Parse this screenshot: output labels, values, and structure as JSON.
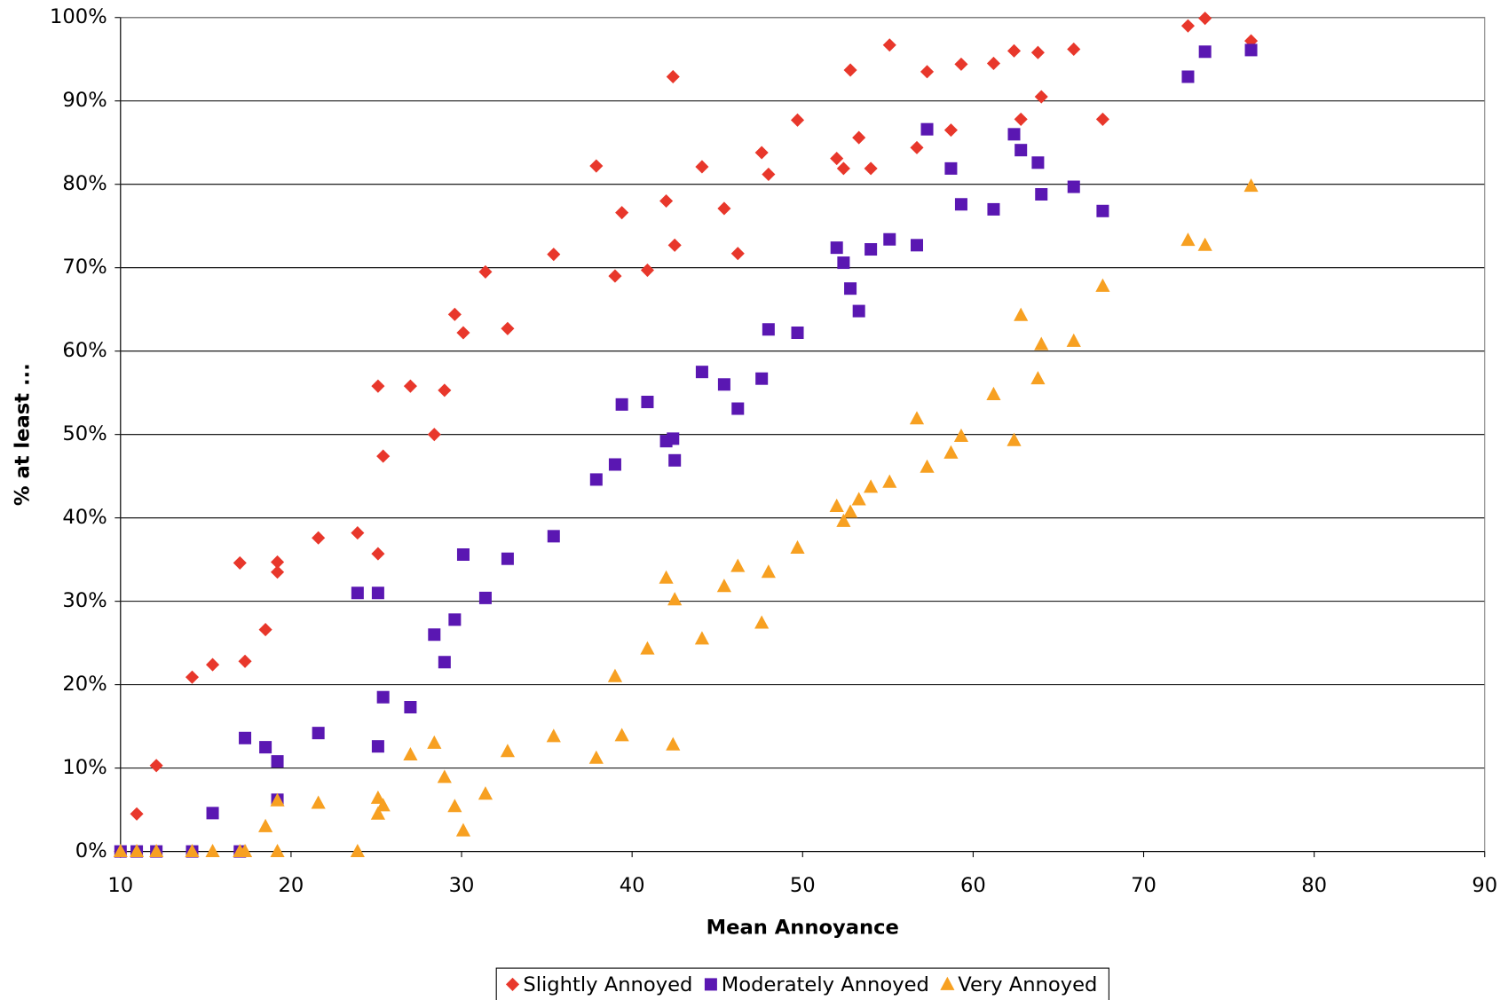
{
  "chart_data": {
    "type": "scatter",
    "xlabel": "Mean Annoyance",
    "ylabel": "% at least ...",
    "x": [
      10,
      10.95,
      12.1,
      14.2,
      15.4,
      17.0,
      17.3,
      18.5,
      19.2,
      19.2,
      21.6,
      23.9,
      25.1,
      25.1,
      25.4,
      27.0,
      28.4,
      29.0,
      29.6,
      30.1,
      31.4,
      32.7,
      35.4,
      37.9,
      39.0,
      39.4,
      40.9,
      42.0,
      42.4,
      42.5,
      44.1,
      45.4,
      46.2,
      47.6,
      48.0,
      49.7,
      52.0,
      52.4,
      52.8,
      53.3,
      54.0,
      55.1,
      56.7,
      57.3,
      58.7,
      59.3,
      61.2,
      62.4,
      62.8,
      63.8,
      64.0,
      65.9,
      67.6,
      72.6,
      73.6,
      76.3
    ],
    "series": [
      {
        "name": "Slightly Annoyed",
        "color": "#e8372b",
        "marker": "diamond",
        "values": [
          0,
          4.5,
          10.3,
          20.9,
          22.4,
          34.6,
          22.8,
          26.6,
          34.7,
          33.5,
          37.6,
          38.2,
          55.8,
          35.7,
          47.4,
          55.8,
          50.0,
          55.3,
          64.4,
          62.2,
          69.5,
          62.7,
          71.6,
          82.2,
          69.0,
          76.6,
          69.7,
          78.0,
          92.9,
          72.7,
          82.1,
          77.1,
          71.7,
          83.8,
          81.2,
          87.7,
          83.1,
          81.9,
          93.7,
          85.6,
          81.9,
          96.7,
          84.4,
          93.5,
          86.5,
          94.4,
          94.5,
          96.0,
          87.8,
          95.8,
          90.5,
          96.2,
          87.8,
          99.0,
          99.9,
          97.2
        ]
      },
      {
        "name": "Moderately Annoyed",
        "color": "#5a17b2",
        "marker": "square",
        "values": [
          0,
          0,
          0,
          0,
          4.6,
          0,
          13.6,
          12.5,
          10.8,
          6.2,
          14.2,
          31.0,
          31.0,
          12.6,
          18.5,
          17.3,
          26.0,
          22.7,
          27.8,
          35.6,
          30.4,
          35.1,
          37.8,
          44.6,
          46.4,
          53.6,
          53.9,
          49.2,
          49.5,
          46.9,
          57.5,
          56.0,
          53.1,
          56.7,
          62.6,
          62.2,
          72.4,
          70.6,
          67.5,
          64.8,
          72.2,
          73.4,
          72.7,
          86.6,
          81.9,
          77.6,
          77.0,
          86.0,
          84.1,
          82.6,
          78.8,
          79.7,
          76.8,
          92.9,
          95.9,
          96.1
        ]
      },
      {
        "name": "Very Annoyed",
        "color": "#f7a021",
        "marker": "triangle",
        "values": [
          0,
          0,
          0,
          0,
          0,
          0,
          0,
          3.0,
          0,
          6.1,
          5.8,
          0,
          6.4,
          4.5,
          5.5,
          11.6,
          13.0,
          8.9,
          5.4,
          2.5,
          6.9,
          12.0,
          13.8,
          11.2,
          21.0,
          13.9,
          24.3,
          32.8,
          12.8,
          30.2,
          25.5,
          31.8,
          34.2,
          27.4,
          33.5,
          36.4,
          41.4,
          39.6,
          40.7,
          42.2,
          43.7,
          44.3,
          51.9,
          46.1,
          47.8,
          49.8,
          54.8,
          49.3,
          64.3,
          56.7,
          60.8,
          61.2,
          67.8,
          73.3,
          72.7,
          79.8
        ]
      }
    ],
    "xlim": [
      10,
      90
    ],
    "xticks": [
      10,
      20,
      30,
      40,
      50,
      60,
      70,
      80,
      90
    ],
    "ylim": [
      0,
      100
    ],
    "yticks": [
      {
        "value": 0,
        "label": "0%"
      },
      {
        "value": 10,
        "label": "10%"
      },
      {
        "value": 20,
        "label": "20%"
      },
      {
        "value": 30,
        "label": "30%"
      },
      {
        "value": 40,
        "label": "40%"
      },
      {
        "value": 50,
        "label": "50%"
      },
      {
        "value": 60,
        "label": "60%"
      },
      {
        "value": 70,
        "label": "70%"
      },
      {
        "value": 80,
        "label": "80%"
      },
      {
        "value": 90,
        "label": "90%"
      },
      {
        "value": 100,
        "label": "100%"
      }
    ],
    "grid": true,
    "legend": "bottom"
  }
}
